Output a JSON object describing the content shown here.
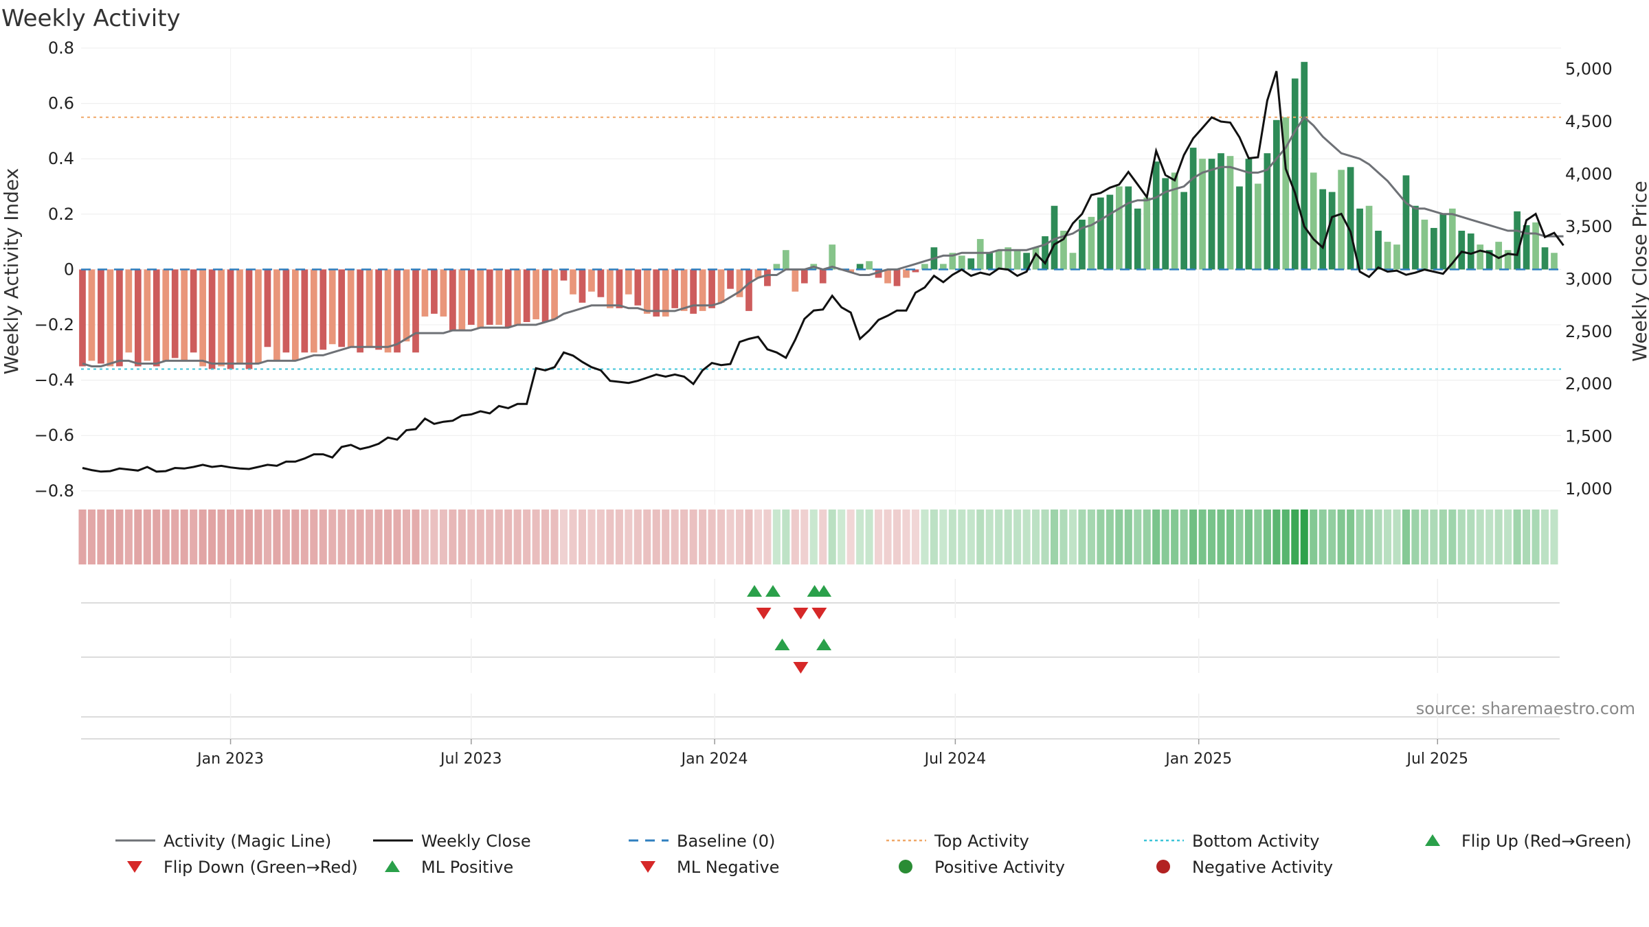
{
  "chart_data": {
    "type": "bar",
    "title": "Weekly Activity",
    "ylabel": "Weekly Activity Index",
    "y2label": "Weekly Close Price",
    "source": "source: sharemaestro.com",
    "ylim": [
      -0.85,
      0.8
    ],
    "y2lim": [
      850,
      5200
    ],
    "y_ticks": [
      0.8,
      0.6,
      0.4,
      0.2,
      0,
      -0.2,
      -0.4,
      -0.6,
      -0.8
    ],
    "y_tick_labels": [
      "0.8",
      "0.6",
      "0.4",
      "0.2",
      "0",
      "−0.2",
      "−0.4",
      "−0.6",
      "−0.8"
    ],
    "y2_ticks": [
      5000,
      4500,
      4000,
      3500,
      3000,
      2500,
      2000,
      1500,
      1000
    ],
    "y2_tick_labels": [
      "5,000",
      "4,500",
      "4,000",
      "3,500",
      "3,000",
      "2,500",
      "2,000",
      "1,500",
      "1,000"
    ],
    "x_start": "2022-09-12",
    "x_end": "2025-08-25",
    "x_ticks": [
      {
        "label": "Jan 2023",
        "week": 16
      },
      {
        "label": "Jul 2023",
        "week": 42
      },
      {
        "label": "Jan 2024",
        "week": 68.3
      },
      {
        "label": "Jul 2024",
        "week": 94.3
      },
      {
        "label": "Jan 2025",
        "week": 120.6
      },
      {
        "label": "Jul 2025",
        "week": 146.4
      }
    ],
    "top_activity": 0.55,
    "bottom_activity": -0.36,
    "baseline": 0,
    "activity": [
      -0.35,
      -0.33,
      -0.34,
      -0.35,
      -0.35,
      -0.3,
      -0.35,
      -0.33,
      -0.35,
      -0.33,
      -0.32,
      -0.33,
      -0.3,
      -0.35,
      -0.36,
      -0.35,
      -0.36,
      -0.34,
      -0.36,
      -0.34,
      -0.28,
      -0.33,
      -0.3,
      -0.33,
      -0.3,
      -0.3,
      -0.29,
      -0.27,
      -0.28,
      -0.28,
      -0.3,
      -0.28,
      -0.29,
      -0.3,
      -0.3,
      -0.26,
      -0.3,
      -0.17,
      -0.16,
      -0.17,
      -0.22,
      -0.22,
      -0.2,
      -0.21,
      -0.2,
      -0.2,
      -0.21,
      -0.2,
      -0.19,
      -0.18,
      -0.19,
      -0.18,
      -0.04,
      -0.09,
      -0.12,
      -0.08,
      -0.1,
      -0.14,
      -0.14,
      -0.09,
      -0.13,
      -0.16,
      -0.17,
      -0.17,
      -0.14,
      -0.15,
      -0.16,
      -0.15,
      -0.14,
      -0.12,
      -0.07,
      -0.1,
      -0.15,
      -0.03,
      -0.06,
      0.02,
      0.07,
      -0.08,
      -0.05,
      0.02,
      -0.05,
      0.09,
      0.0,
      -0.01,
      0.02,
      0.03,
      -0.03,
      -0.05,
      -0.06,
      -0.03,
      -0.01,
      0.02,
      0.08,
      0.02,
      0.06,
      0.05,
      0.04,
      0.11,
      0.06,
      0.07,
      0.08,
      0.07,
      0.06,
      0.08,
      0.12,
      0.23,
      0.14,
      0.06,
      0.18,
      0.19,
      0.26,
      0.27,
      0.3,
      0.3,
      0.22,
      0.26,
      0.39,
      0.33,
      0.35,
      0.28,
      0.44,
      0.4,
      0.4,
      0.42,
      0.41,
      0.3,
      0.4,
      0.31,
      0.42,
      0.54,
      0.55,
      0.69,
      0.75,
      0.35,
      0.29,
      0.28,
      0.36,
      0.37,
      0.22,
      0.23,
      0.14,
      0.1,
      0.09,
      0.34,
      0.23,
      0.18,
      0.15,
      0.2,
      0.22,
      0.14,
      0.13,
      0.09,
      0.07,
      0.1,
      0.07,
      0.21,
      0.16,
      0.17,
      0.08,
      0.06
    ],
    "magic_line": [
      -0.34,
      -0.35,
      -0.35,
      -0.34,
      -0.33,
      -0.33,
      -0.34,
      -0.34,
      -0.34,
      -0.33,
      -0.33,
      -0.33,
      -0.33,
      -0.33,
      -0.34,
      -0.34,
      -0.34,
      -0.34,
      -0.34,
      -0.34,
      -0.33,
      -0.33,
      -0.33,
      -0.33,
      -0.32,
      -0.31,
      -0.31,
      -0.3,
      -0.29,
      -0.28,
      -0.28,
      -0.28,
      -0.28,
      -0.28,
      -0.27,
      -0.25,
      -0.23,
      -0.23,
      -0.23,
      -0.23,
      -0.22,
      -0.22,
      -0.22,
      -0.21,
      -0.21,
      -0.21,
      -0.21,
      -0.2,
      -0.2,
      -0.2,
      -0.19,
      -0.18,
      -0.16,
      -0.15,
      -0.14,
      -0.13,
      -0.13,
      -0.13,
      -0.13,
      -0.14,
      -0.14,
      -0.15,
      -0.15,
      -0.15,
      -0.15,
      -0.14,
      -0.13,
      -0.13,
      -0.13,
      -0.12,
      -0.1,
      -0.08,
      -0.05,
      -0.03,
      -0.02,
      -0.02,
      0.0,
      0.0,
      0.0,
      0.01,
      0.0,
      0.01,
      0.0,
      -0.01,
      -0.02,
      -0.02,
      -0.01,
      0.0,
      0.0,
      0.01,
      0.02,
      0.03,
      0.04,
      0.05,
      0.05,
      0.06,
      0.06,
      0.06,
      0.06,
      0.07,
      0.07,
      0.07,
      0.07,
      0.08,
      0.09,
      0.11,
      0.12,
      0.13,
      0.15,
      0.16,
      0.18,
      0.2,
      0.22,
      0.24,
      0.25,
      0.25,
      0.26,
      0.28,
      0.29,
      0.3,
      0.33,
      0.35,
      0.36,
      0.37,
      0.37,
      0.36,
      0.35,
      0.35,
      0.36,
      0.4,
      0.44,
      0.5,
      0.55,
      0.52,
      0.48,
      0.45,
      0.42,
      0.41,
      0.4,
      0.38,
      0.35,
      0.32,
      0.28,
      0.24,
      0.22,
      0.22,
      0.21,
      0.2,
      0.2,
      0.19,
      0.18,
      0.17,
      0.16,
      0.15,
      0.14,
      0.14,
      0.13,
      0.13,
      0.12,
      0.12,
      0.12
    ],
    "close": [
      1200,
      1180,
      1165,
      1170,
      1195,
      1185,
      1175,
      1210,
      1165,
      1170,
      1200,
      1195,
      1210,
      1230,
      1210,
      1220,
      1205,
      1195,
      1190,
      1210,
      1230,
      1220,
      1260,
      1260,
      1290,
      1330,
      1330,
      1300,
      1400,
      1420,
      1380,
      1400,
      1430,
      1490,
      1470,
      1560,
      1570,
      1670,
      1620,
      1640,
      1650,
      1700,
      1710,
      1740,
      1720,
      1790,
      1770,
      1810,
      1810,
      2150,
      2130,
      2160,
      2300,
      2270,
      2210,
      2160,
      2130,
      2030,
      2020,
      2010,
      2030,
      2060,
      2090,
      2070,
      2090,
      2070,
      2000,
      2130,
      2200,
      2180,
      2190,
      2400,
      2430,
      2450,
      2330,
      2300,
      2250,
      2420,
      2620,
      2700,
      2710,
      2840,
      2730,
      2680,
      2430,
      2510,
      2610,
      2650,
      2700,
      2700,
      2870,
      2920,
      3030,
      2970,
      3040,
      3090,
      3030,
      3060,
      3040,
      3100,
      3090,
      3030,
      3070,
      3240,
      3150,
      3330,
      3380,
      3530,
      3620,
      3800,
      3820,
      3870,
      3900,
      4020,
      3900,
      3780,
      4220,
      3990,
      3940,
      4180,
      4340,
      4440,
      4540,
      4500,
      4490,
      4350,
      4150,
      4160,
      4700,
      4980,
      4050,
      3820,
      3500,
      3380,
      3300,
      3590,
      3620,
      3450,
      3070,
      3020,
      3110,
      3070,
      3080,
      3040,
      3060,
      3090,
      3070,
      3050,
      3150,
      3260,
      3240,
      3270,
      3250,
      3200,
      3240,
      3230,
      3560,
      3620,
      3400,
      3440,
      3320
    ],
    "flip_up": [
      72.6,
      74.6,
      79.1,
      80.1
    ],
    "flip_down": [
      73.6,
      77.6,
      79.6
    ],
    "ml_positive": [
      75.6,
      80.1
    ],
    "ml_negative": [
      77.6
    ],
    "legend": [
      {
        "label": "Activity (Magic Line)",
        "kind": "line",
        "color": "#6e7176"
      },
      {
        "label": "Weekly Close",
        "kind": "line",
        "color": "#111111"
      },
      {
        "label": "Baseline (0)",
        "kind": "dash",
        "color": "#2f7fbf"
      },
      {
        "label": "Top Activity",
        "kind": "dot",
        "color": "#f0a868"
      },
      {
        "label": "Bottom Activity",
        "kind": "dot",
        "color": "#3cc4d8"
      },
      {
        "label": "Flip Up (Red→Green)",
        "kind": "tri-up",
        "color": "#2aa04a"
      },
      {
        "label": "Flip Down (Green→Red)",
        "kind": "tri-down",
        "color": "#d62828"
      },
      {
        "label": "ML Positive",
        "kind": "tri-up",
        "color": "#2aa04a"
      },
      {
        "label": "ML Negative",
        "kind": "tri-down",
        "color": "#d62828"
      },
      {
        "label": "Positive Activity",
        "kind": "circle",
        "color": "#2a8c34"
      },
      {
        "label": "Negative Activity",
        "kind": "circle",
        "color": "#b22222"
      }
    ],
    "colors": {
      "pos_strong": "#2e8b57",
      "pos_weak": "#86c48a",
      "neg_strong": "#cd5c5c",
      "neg_weak": "#e9967a",
      "grid": "#e6e6e6"
    }
  }
}
